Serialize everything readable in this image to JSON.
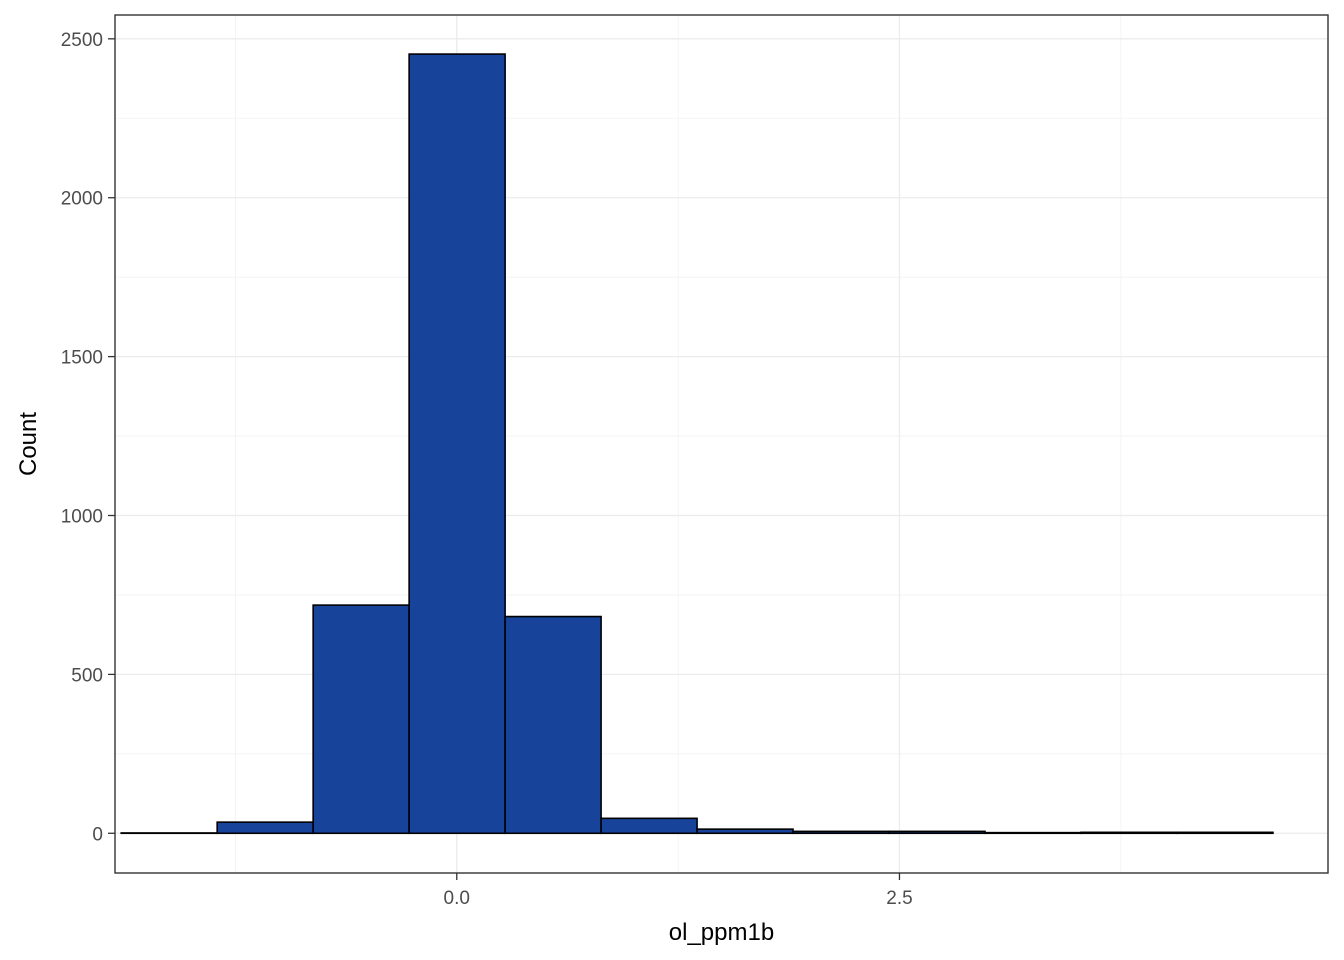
{
  "chart_data": {
    "type": "bar",
    "subtype": "histogram",
    "title": "",
    "xlabel": "ol_ppm1b",
    "ylabel": "Count",
    "xlim": [
      -1.93,
      4.92
    ],
    "ylim": [
      -125,
      2575
    ],
    "x_ticks": [
      {
        "value": 0.0,
        "label": "0.0"
      },
      {
        "value": 2.5,
        "label": "2.5"
      }
    ],
    "x_minor_ticks": [
      -1.25,
      1.25,
      3.75
    ],
    "y_ticks": [
      {
        "value": 0,
        "label": "0"
      },
      {
        "value": 500,
        "label": "500"
      },
      {
        "value": 1000,
        "label": "1000"
      },
      {
        "value": 1500,
        "label": "1500"
      },
      {
        "value": 2000,
        "label": "2000"
      },
      {
        "value": 2500,
        "label": "2500"
      }
    ],
    "y_minor_ticks": [
      250,
      750,
      1250,
      1750,
      2250
    ],
    "bins": [
      {
        "x_start": -1.895,
        "x_end": -1.353,
        "count": 1
      },
      {
        "x_start": -1.353,
        "x_end": -0.811,
        "count": 35
      },
      {
        "x_start": -0.811,
        "x_end": -0.269,
        "count": 718
      },
      {
        "x_start": -0.269,
        "x_end": 0.273,
        "count": 2452
      },
      {
        "x_start": 0.273,
        "x_end": 0.815,
        "count": 682
      },
      {
        "x_start": 0.815,
        "x_end": 1.357,
        "count": 47
      },
      {
        "x_start": 1.357,
        "x_end": 1.899,
        "count": 13
      },
      {
        "x_start": 1.899,
        "x_end": 2.441,
        "count": 6
      },
      {
        "x_start": 2.441,
        "x_end": 2.983,
        "count": 6
      },
      {
        "x_start": 2.983,
        "x_end": 3.525,
        "count": 2
      },
      {
        "x_start": 3.525,
        "x_end": 4.067,
        "count": 3
      },
      {
        "x_start": 4.067,
        "x_end": 4.609,
        "count": 3
      }
    ],
    "bar_fill": "#17449a",
    "bar_outline": "#000000",
    "grid": true,
    "legend": "none"
  }
}
